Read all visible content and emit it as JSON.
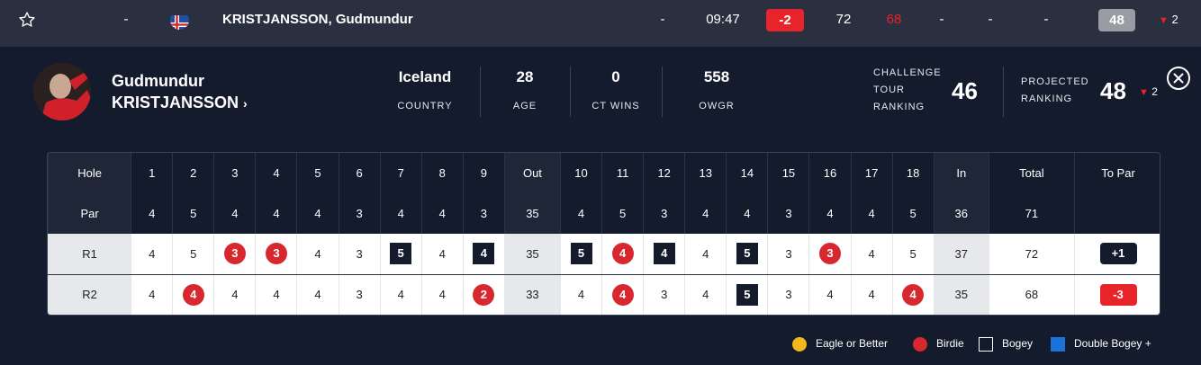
{
  "top_row": {
    "position": "-",
    "name": "KRISTJANSSON, Gudmundur",
    "col_a": "-",
    "tee_time": "09:47",
    "to_par": "-2",
    "round_score": "72",
    "prev_score": "68",
    "col_b": "-",
    "col_c": "-",
    "col_d": "-",
    "ranking": "48",
    "movement": "2"
  },
  "player": {
    "first_name": "Gudmundur",
    "last_name": "KRISTJANSSON",
    "stats": [
      {
        "value": "Iceland",
        "label": "COUNTRY"
      },
      {
        "value": "28",
        "label": "AGE"
      },
      {
        "value": "0",
        "label": "CT WINS"
      },
      {
        "value": "558",
        "label": "OWGR"
      }
    ],
    "ct_ranking_label": [
      "CHALLENGE",
      "TOUR",
      "RANKING"
    ],
    "ct_ranking": "46",
    "proj_label": [
      "PROJECTED",
      "RANKING"
    ],
    "proj_ranking": "48",
    "proj_movement": "2"
  },
  "scorecard": {
    "hole_label": "Hole",
    "par_label": "Par",
    "out_label": "Out",
    "in_label": "In",
    "total_label": "Total",
    "topar_label": "To Par",
    "holes": [
      "1",
      "2",
      "3",
      "4",
      "5",
      "6",
      "7",
      "8",
      "9",
      "10",
      "11",
      "12",
      "13",
      "14",
      "15",
      "16",
      "17",
      "18"
    ],
    "par": [
      "4",
      "5",
      "4",
      "4",
      "4",
      "3",
      "4",
      "4",
      "3",
      "4",
      "5",
      "3",
      "4",
      "4",
      "3",
      "4",
      "4",
      "5"
    ],
    "par_out": "35",
    "par_in": "36",
    "par_total": "71",
    "rounds": [
      {
        "label": "R1",
        "scores": [
          "4",
          "5",
          "3",
          "3",
          "4",
          "3",
          "5",
          "4",
          "4",
          "5",
          "4",
          "4",
          "4",
          "5",
          "3",
          "3",
          "4",
          "5"
        ],
        "types": [
          "",
          "",
          "birdie",
          "birdie",
          "",
          "",
          "bogey",
          "",
          "bogey",
          "bogey",
          "birdie",
          "bogey",
          "",
          "bogey",
          "",
          "birdie",
          "",
          ""
        ],
        "out": "35",
        "in": "37",
        "total": "72",
        "to_par": "+1"
      },
      {
        "label": "R2",
        "scores": [
          "4",
          "4",
          "4",
          "4",
          "4",
          "3",
          "4",
          "4",
          "2",
          "4",
          "4",
          "3",
          "4",
          "5",
          "3",
          "4",
          "4",
          "4"
        ],
        "types": [
          "",
          "birdie",
          "",
          "",
          "",
          "",
          "",
          "",
          "birdie",
          "",
          "birdie",
          "",
          "",
          "bogey",
          "",
          "",
          "",
          "birdie"
        ],
        "out": "33",
        "in": "35",
        "total": "68",
        "to_par": "-3"
      }
    ]
  },
  "legend": [
    {
      "label": "Eagle or Better",
      "color": "#f2b81c",
      "shape": "circle"
    },
    {
      "label": "Birdie",
      "color": "#d7282f",
      "shape": "circle"
    },
    {
      "label": "Bogey",
      "color": "#141b2d",
      "shape": "square"
    },
    {
      "label": "Double Bogey +",
      "color": "#1a73d9",
      "shape": "square"
    }
  ],
  "colors": {
    "red": "#e8232a",
    "dark": "#141b2d",
    "grey_pill": "#9a9ca3"
  }
}
